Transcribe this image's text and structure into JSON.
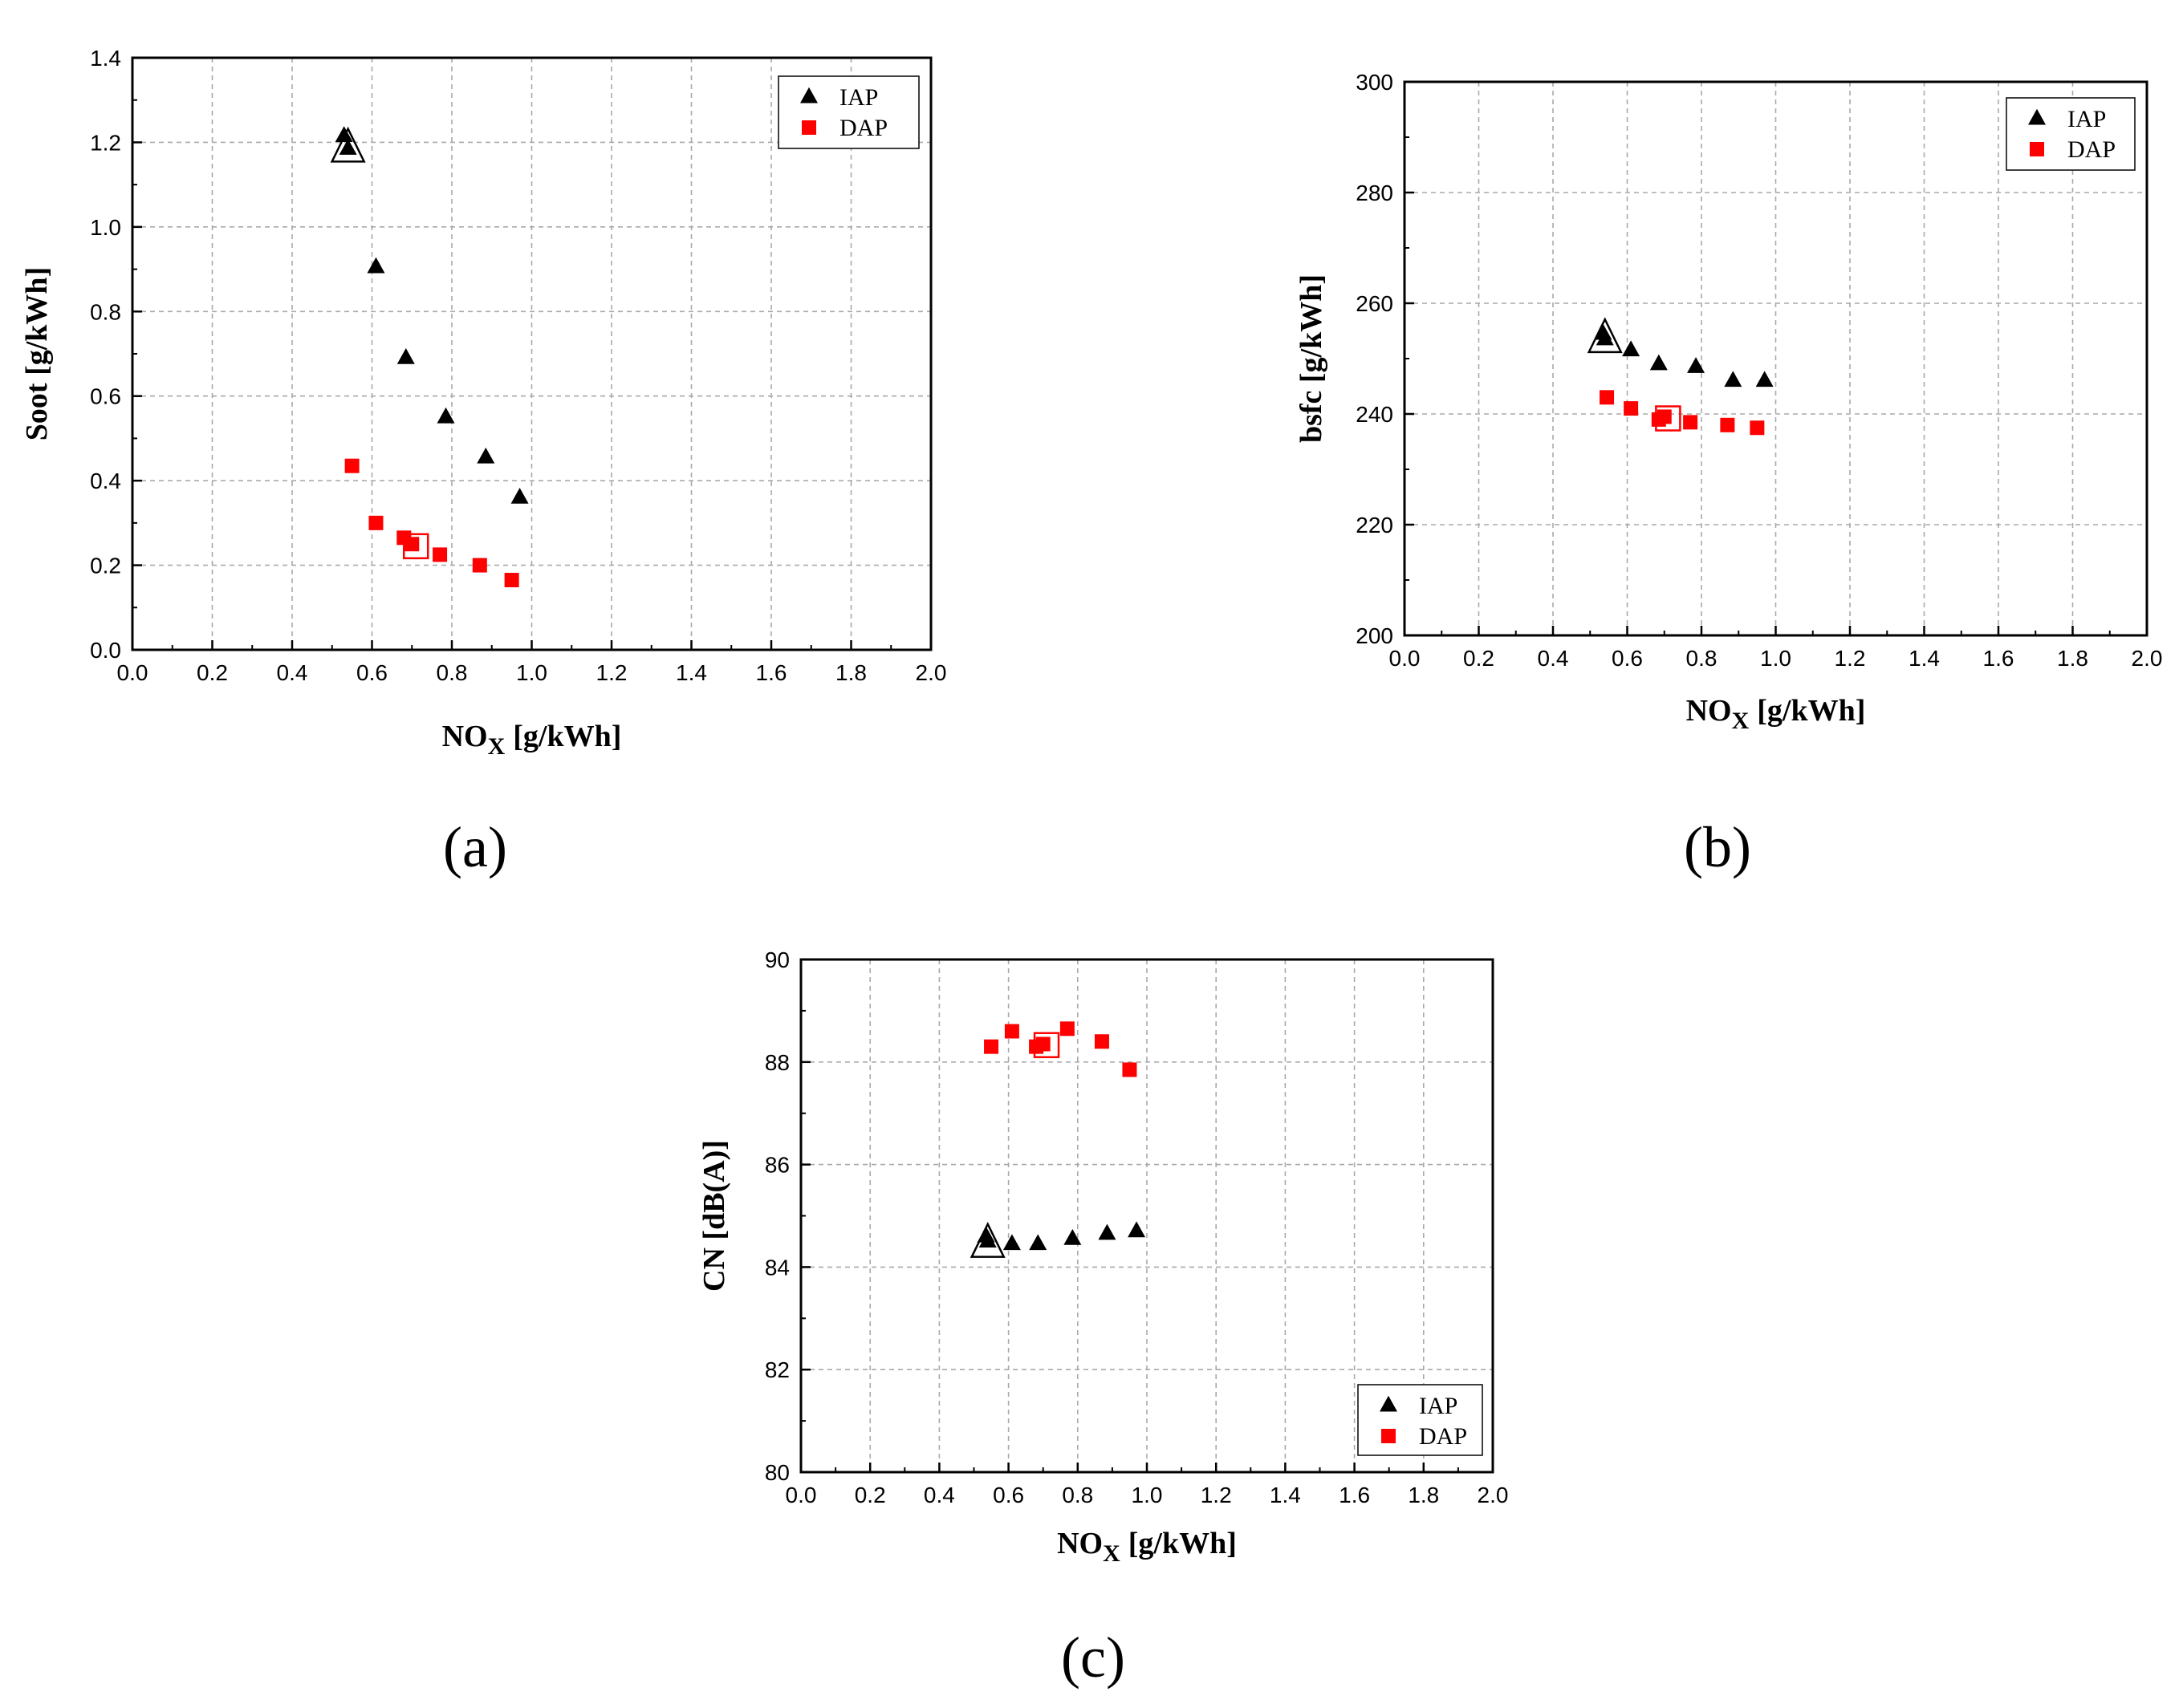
{
  "colors": {
    "IAP": "#000000",
    "DAP": "#ff0000"
  },
  "panels": [
    {
      "label": "(a)"
    },
    {
      "label": "(b)"
    },
    {
      "label": "(c)"
    }
  ],
  "chart_data": [
    {
      "type": "scatter",
      "title": "",
      "xlabel": "NO",
      "xlabel_sub": "X",
      "xlabel_unit": "[g/kWh]",
      "ylabel": "Soot [g/kWh]",
      "xlim": [
        0.0,
        2.0
      ],
      "ylim": [
        0.0,
        1.4
      ],
      "xticks": [
        "0.0",
        "0.2",
        "0.4",
        "0.6",
        "0.8",
        "1.0",
        "1.2",
        "1.4",
        "1.6",
        "1.8",
        "2.0"
      ],
      "yticks": [
        "0.0",
        "0.2",
        "0.4",
        "0.6",
        "0.8",
        "1.0",
        "1.2",
        "1.4"
      ],
      "legend_position": "top-right",
      "series": [
        {
          "name": "IAP",
          "marker": "triangle",
          "x": [
            0.53,
            0.54,
            0.61,
            0.685,
            0.785,
            0.885,
            0.97
          ],
          "y": [
            1.215,
            1.185,
            0.905,
            0.69,
            0.55,
            0.455,
            0.36
          ]
        },
        {
          "name": "DAP",
          "marker": "square",
          "x": [
            0.55,
            0.61,
            0.68,
            0.7,
            0.77,
            0.87,
            0.95
          ],
          "y": [
            0.435,
            0.3,
            0.265,
            0.25,
            0.225,
            0.2,
            0.165
          ]
        }
      ],
      "highlights": [
        {
          "series": "IAP",
          "x": 0.54,
          "y": 1.185
        },
        {
          "series": "DAP",
          "x": 0.71,
          "y": 0.245
        }
      ]
    },
    {
      "type": "scatter",
      "title": "",
      "xlabel": "NO",
      "xlabel_sub": "X",
      "xlabel_unit": "[g/kWh]",
      "ylabel": "bsfc [g/kWh]",
      "xlim": [
        0.0,
        2.0
      ],
      "ylim": [
        200,
        300
      ],
      "xticks": [
        "0.0",
        "0.2",
        "0.4",
        "0.6",
        "0.8",
        "1.0",
        "1.2",
        "1.4",
        "1.6",
        "1.8",
        "2.0"
      ],
      "yticks": [
        "200",
        "220",
        "240",
        "260",
        "280",
        "300"
      ],
      "legend_position": "top-right",
      "series": [
        {
          "name": "IAP",
          "marker": "triangle",
          "x": [
            0.535,
            0.54,
            0.61,
            0.685,
            0.785,
            0.885,
            0.97
          ],
          "y": [
            254.5,
            253.5,
            251.5,
            249.0,
            248.5,
            246.0,
            246.0
          ]
        },
        {
          "name": "DAP",
          "marker": "square",
          "x": [
            0.545,
            0.61,
            0.685,
            0.7,
            0.77,
            0.87,
            0.95
          ],
          "y": [
            243.0,
            241.0,
            239.0,
            239.5,
            238.5,
            238.0,
            237.5
          ]
        }
      ],
      "highlights": [
        {
          "series": "IAP",
          "x": 0.54,
          "y": 253.5
        },
        {
          "series": "DAP",
          "x": 0.71,
          "y": 239.2
        }
      ]
    },
    {
      "type": "scatter",
      "title": "",
      "xlabel": "NO",
      "xlabel_sub": "X",
      "xlabel_unit": "[g/kWh]",
      "ylabel": "CN [dB(A)]",
      "xlim": [
        0.0,
        2.0
      ],
      "ylim": [
        80,
        90
      ],
      "xticks": [
        "0.0",
        "0.2",
        "0.4",
        "0.6",
        "0.8",
        "1.0",
        "1.2",
        "1.4",
        "1.6",
        "1.8",
        "2.0"
      ],
      "yticks": [
        "80",
        "82",
        "84",
        "86",
        "88",
        "90"
      ],
      "legend_position": "bottom-right",
      "series": [
        {
          "name": "IAP",
          "marker": "triangle",
          "x": [
            0.535,
            0.54,
            0.61,
            0.685,
            0.785,
            0.885,
            0.97
          ],
          "y": [
            84.6,
            84.5,
            84.45,
            84.45,
            84.55,
            84.65,
            84.7
          ]
        },
        {
          "name": "DAP",
          "marker": "square",
          "x": [
            0.55,
            0.61,
            0.68,
            0.7,
            0.77,
            0.87,
            0.95
          ],
          "y": [
            88.3,
            88.6,
            88.3,
            88.35,
            88.65,
            88.4,
            87.85
          ]
        }
      ],
      "highlights": [
        {
          "series": "IAP",
          "x": 0.54,
          "y": 84.45
        },
        {
          "series": "DAP",
          "x": 0.71,
          "y": 88.33
        }
      ]
    }
  ]
}
